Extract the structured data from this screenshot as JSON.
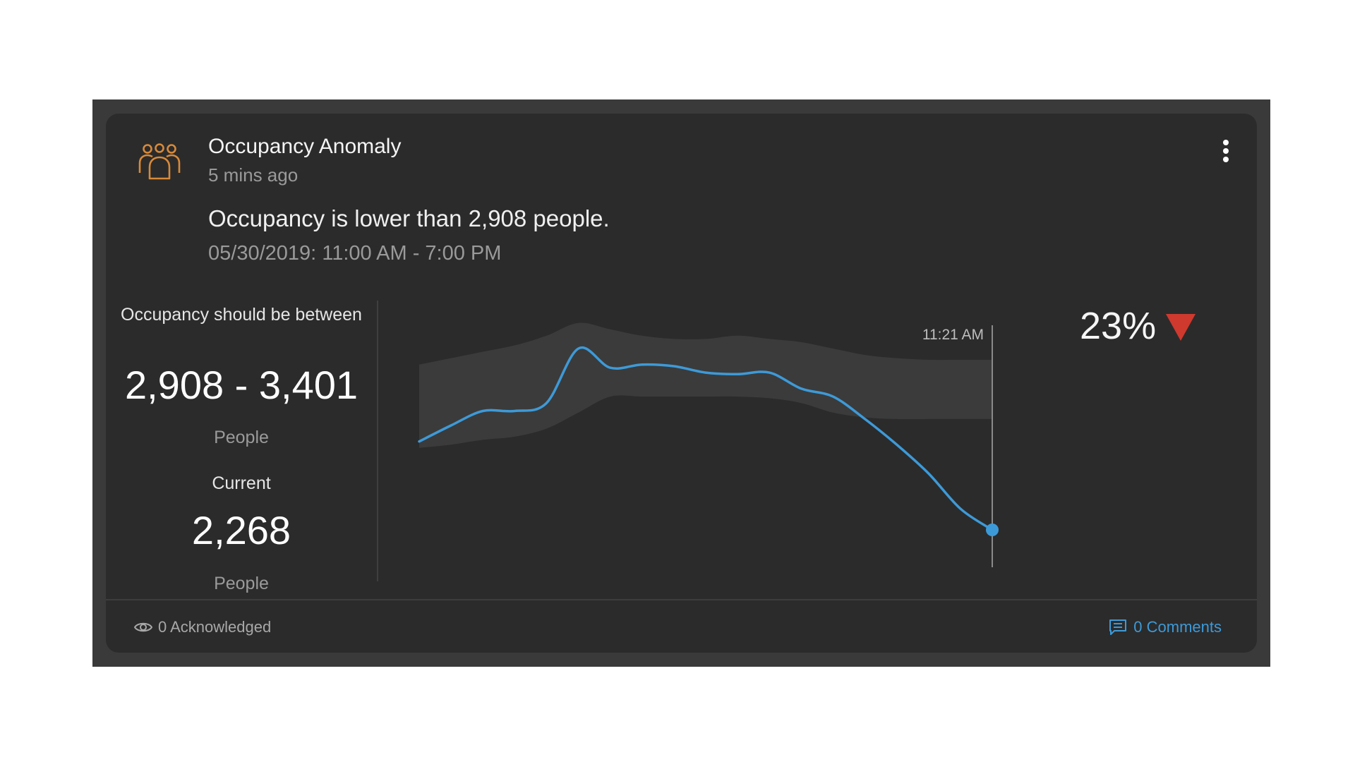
{
  "card": {
    "icon": "people-group-icon",
    "title": "Occupancy Anomaly",
    "time_ago": "5 mins ago",
    "menu_icon": "more-vertical-icon",
    "message": "Occupancy is lower than 2,908 people.",
    "date_range": "05/30/2019: 11:00 AM - 7:00 PM"
  },
  "expected": {
    "label": "Occupancy should be between",
    "value": "2,908 - 3,401",
    "unit": "People"
  },
  "current": {
    "label": "Current",
    "value": "2,268",
    "unit": "People"
  },
  "change": {
    "percent": "23%",
    "direction": "down",
    "arrow_icon": "triangle-down-icon"
  },
  "footer": {
    "acknowledged_icon": "eye-icon",
    "acknowledged": "0 Acknowledged",
    "comments_icon": "comment-icon",
    "comments": "0 Comments"
  },
  "colors": {
    "icon_accent": "#d88a3a",
    "line": "#3d9ad8",
    "band": "#3b3b3b",
    "alert": "#d0392e",
    "link": "#3d9ad8"
  },
  "chart_data": {
    "type": "area",
    "marker_label": "11:21 AM",
    "x": [
      0,
      1,
      2,
      3,
      4,
      5,
      6,
      7,
      8,
      9,
      10,
      11,
      12,
      13,
      14,
      15,
      16,
      17,
      18
    ],
    "series": [
      {
        "values": [
          2820,
          2920,
          3010,
          3010,
          3060,
          3400,
          3280,
          3300,
          3290,
          3250,
          3240,
          3250,
          3150,
          3100,
          2960,
          2800,
          2620,
          2400,
          2268
        ]
      }
    ],
    "band_lower": [
      2780,
      2800,
      2830,
      2850,
      2900,
      3000,
      3100,
      3100,
      3100,
      3100,
      3100,
      3090,
      3060,
      3000,
      2970,
      2960,
      2960,
      2960,
      2960
    ],
    "band_upper": [
      3300,
      3340,
      3380,
      3420,
      3480,
      3560,
      3520,
      3480,
      3460,
      3460,
      3480,
      3460,
      3440,
      3400,
      3360,
      3340,
      3330,
      3330,
      3330
    ]
  }
}
